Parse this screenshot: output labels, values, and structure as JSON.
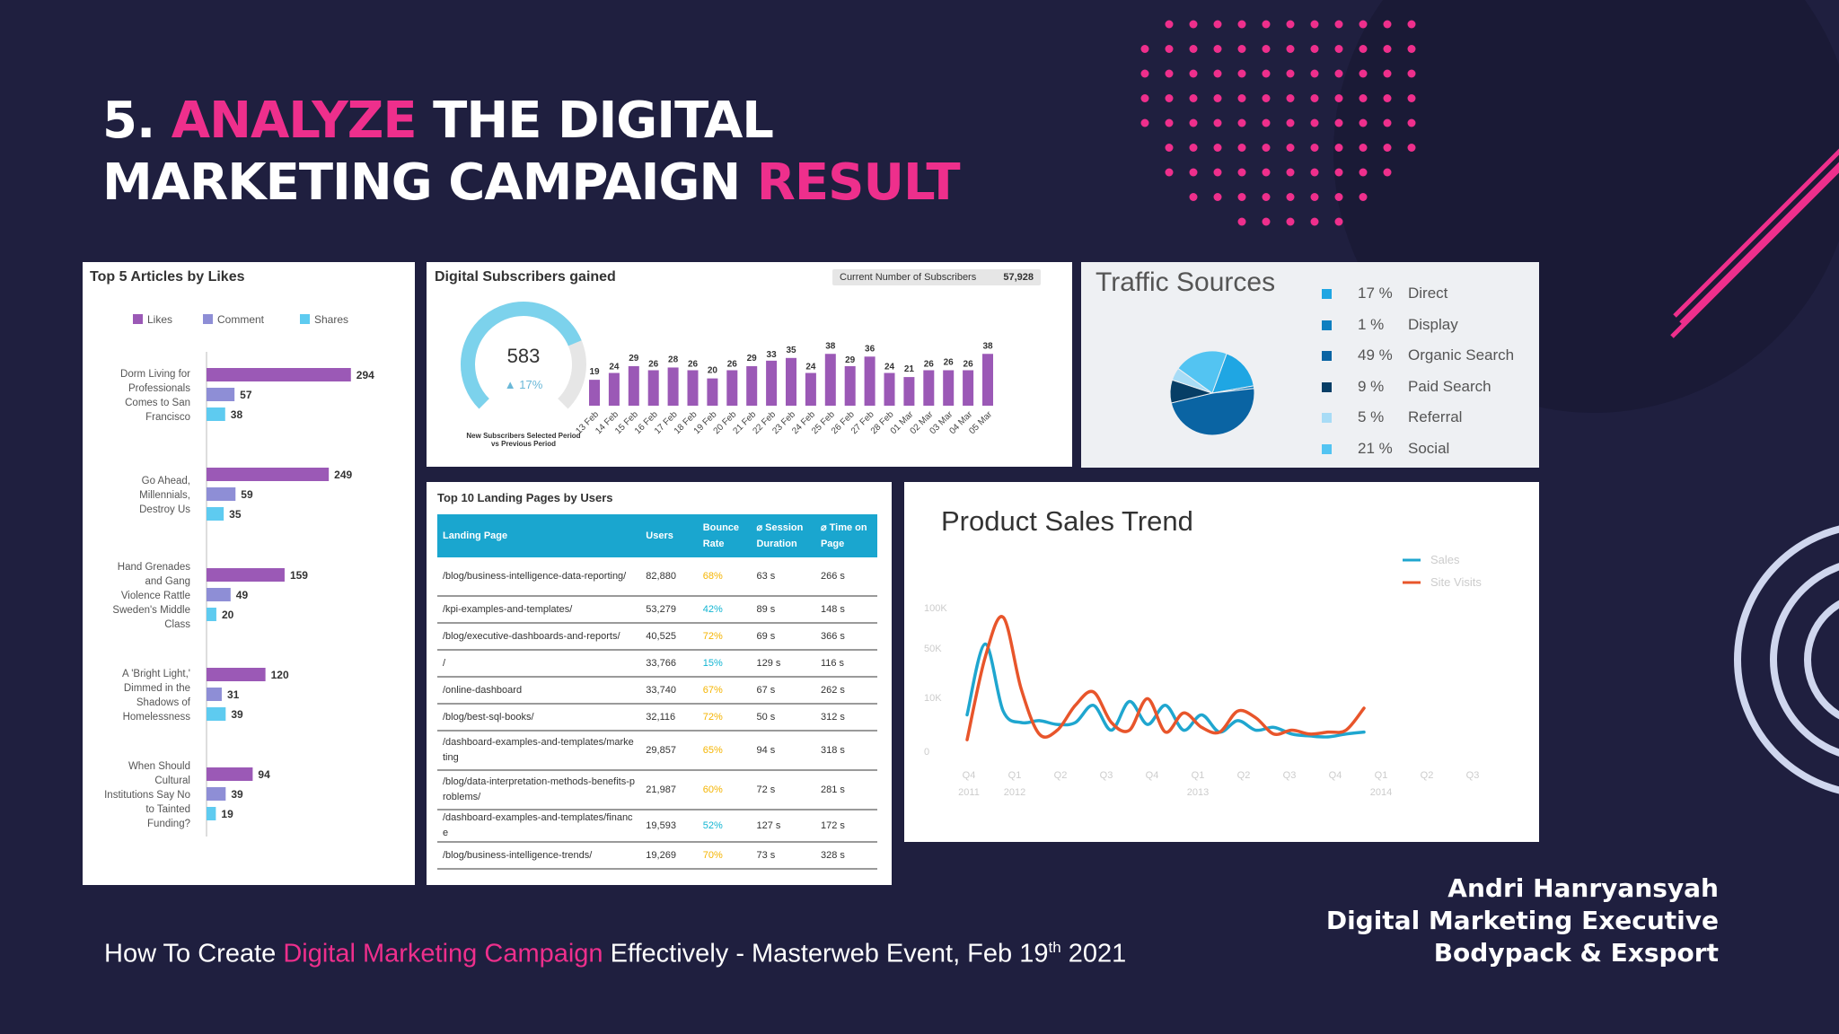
{
  "slide": {
    "title_prefix": "5.",
    "title_word1": "ANALYZE",
    "title_rest1": "THE DIGITAL",
    "title_line2": "MARKETING CAMPAIGN",
    "title_word2": "RESULT",
    "footer_pre": "How To Create",
    "footer_highlight": "Digital Marketing Campaign",
    "footer_post": "Effectively - Masterweb Event, Feb 19",
    "footer_sup": "th",
    "footer_year": "2021",
    "author_name": "Andri Hanryansyah",
    "author_role": "Digital Marketing Executive",
    "author_company": "Bodypack & Exsport",
    "colors": {
      "background": "#1f1f3f",
      "accent": "#ee2f8c"
    }
  },
  "chart_data": [
    {
      "type": "bar",
      "orientation": "horizontal",
      "title": "Top 5 Articles by Likes",
      "legend": [
        "Likes",
        "Comment",
        "Shares"
      ],
      "categories": [
        [
          "Dorm Living for",
          "Professionals",
          "Comes to San",
          "Francisco"
        ],
        [
          "Go Ahead,",
          "Millennials,",
          "Destroy Us"
        ],
        [
          "Hand Grenades",
          "and Gang",
          "Violence Rattle",
          "Sweden's Middle",
          "Class"
        ],
        [
          "A 'Bright Light,'",
          "Dimmed in the",
          "Shadows of",
          "Homelessness"
        ],
        [
          "When Should",
          "Cultural",
          "Institutions Say No",
          "to Tainted",
          "Funding?"
        ]
      ],
      "series": [
        {
          "name": "Likes",
          "values": [
            294,
            249,
            159,
            120,
            94
          ],
          "color": "#9b59b6"
        },
        {
          "name": "Comment",
          "values": [
            57,
            59,
            49,
            31,
            39
          ],
          "color": "#8e8ed6"
        },
        {
          "name": "Shares",
          "values": [
            38,
            35,
            20,
            39,
            19
          ],
          "color": "#5ecbf0"
        }
      ]
    },
    {
      "type": "bar",
      "title": "Digital Subscribers gained",
      "current_label": "Current Number of Subscribers",
      "current_value": "57,928",
      "gauge": {
        "value": "583",
        "change": "▲ 17%",
        "fraction": 0.75,
        "caption1": "New Subscribers Selected Period",
        "caption2": "vs Previous Period"
      },
      "categories": [
        "13 Feb",
        "14 Feb",
        "15 Feb",
        "16 Feb",
        "17 Feb",
        "18 Feb",
        "19 Feb",
        "20 Feb",
        "21 Feb",
        "22 Feb",
        "23 Feb",
        "24 Feb",
        "25 Feb",
        "26 Feb",
        "27 Feb",
        "28 Feb",
        "01 Mar",
        "02 Mar",
        "03 Mar",
        "04 Mar",
        "05 Mar"
      ],
      "values": [
        19,
        24,
        29,
        26,
        28,
        26,
        20,
        26,
        29,
        33,
        35,
        24,
        38,
        29,
        36,
        24,
        21,
        26,
        26,
        26,
        38
      ],
      "color": "#9b59b6"
    },
    {
      "type": "pie",
      "title": "Traffic Sources",
      "slices": [
        {
          "label": "Direct",
          "pct": "17 %",
          "value": 17,
          "color": "#1fa6e3"
        },
        {
          "label": "Display",
          "pct": "1 %",
          "value": 1,
          "color": "#0e7fc0"
        },
        {
          "label": "Organic Search",
          "pct": "49 %",
          "value": 49,
          "color": "#0a64a3"
        },
        {
          "label": "Paid Search",
          "pct": "9 %",
          "value": 9,
          "color": "#073e66"
        },
        {
          "label": "Referral",
          "pct": "5 %",
          "value": 5,
          "color": "#a8dcf6"
        },
        {
          "label": "Social",
          "pct": "21 %",
          "value": 21,
          "color": "#53c4f2"
        }
      ]
    },
    {
      "type": "table",
      "title": "Top 10 Landing Pages by Users",
      "columns": [
        "Landing Page",
        "Users",
        "Bounce Rate",
        "⌀ Session Duration",
        "⌀ Time on Page"
      ],
      "rows": [
        [
          "/blog/business-intelligence-data-reporting/",
          "82,880",
          "68%",
          "63 s",
          "266 s"
        ],
        [
          "/kpi-examples-and-templates/",
          "53,279",
          "42%",
          "89 s",
          "148 s"
        ],
        [
          "/blog/executive-dashboards-and-reports/",
          "40,525",
          "72%",
          "69 s",
          "366 s"
        ],
        [
          "/",
          "33,766",
          "15%",
          "129 s",
          "116 s"
        ],
        [
          "/online-dashboard",
          "33,740",
          "67%",
          "67 s",
          "262 s"
        ],
        [
          "/blog/best-sql-books/",
          "32,116",
          "72%",
          "50 s",
          "312 s"
        ],
        [
          "/dashboard-examples-and-templates/marketing",
          "29,857",
          "65%",
          "94 s",
          "318 s"
        ],
        [
          "/blog/data-interpretation-methods-benefits-problems/",
          "21,987",
          "60%",
          "72 s",
          "281 s"
        ],
        [
          "/dashboard-examples-and-templates/finance",
          "19,593",
          "52%",
          "127 s",
          "172 s"
        ],
        [
          "/blog/business-intelligence-trends/",
          "19,269",
          "70%",
          "73 s",
          "328 s"
        ]
      ]
    },
    {
      "type": "line",
      "title": "Product Sales Trend",
      "yticks": [
        "100K",
        "50K",
        "10K",
        "0"
      ],
      "ylim": [
        0,
        150
      ],
      "x_quarters": [
        "Q4",
        "Q1",
        "Q2",
        "Q3",
        "Q4",
        "Q1",
        "Q2",
        "Q3",
        "Q4",
        "Q1",
        "Q2",
        "Q3"
      ],
      "x_years": {
        "0": "2011",
        "1": "2012",
        "5": "2013",
        "9": "2014"
      },
      "x": [
        0,
        0.5,
        1,
        1.5,
        2,
        2.5,
        3,
        3.5,
        4,
        4.5,
        5,
        5.5,
        6,
        6.5,
        7,
        7.5,
        8,
        8.5,
        9,
        9.5,
        10,
        10.5,
        11
      ],
      "series": [
        {
          "name": "Sales",
          "color": "#1fa6cf",
          "values": [
            38,
            112,
            42,
            30,
            32,
            28,
            30,
            48,
            22,
            52,
            28,
            48,
            22,
            38,
            20,
            32,
            22,
            25,
            18,
            16,
            15,
            18,
            20
          ]
        },
        {
          "name": "Site Visits",
          "color": "#e8552b",
          "values": [
            12,
            98,
            140,
            65,
            18,
            22,
            48,
            62,
            30,
            22,
            55,
            20,
            40,
            25,
            20,
            42,
            35,
            18,
            22,
            18,
            20,
            22,
            45
          ]
        }
      ]
    }
  ]
}
